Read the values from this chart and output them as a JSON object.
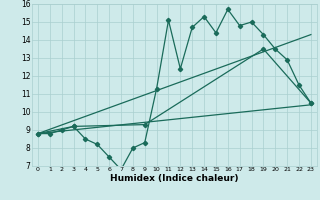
{
  "xlabel": "Humidex (Indice chaleur)",
  "bg_color": "#ceeaea",
  "grid_color": "#aacfcf",
  "line_color": "#1a6b5a",
  "xlim": [
    -0.5,
    23.5
  ],
  "ylim": [
    7,
    16
  ],
  "xticks": [
    0,
    1,
    2,
    3,
    4,
    5,
    6,
    7,
    8,
    9,
    10,
    11,
    12,
    13,
    14,
    15,
    16,
    17,
    18,
    19,
    20,
    21,
    22,
    23
  ],
  "yticks": [
    7,
    8,
    9,
    10,
    11,
    12,
    13,
    14,
    15,
    16
  ],
  "series1_x": [
    0,
    1,
    2,
    3,
    4,
    5,
    6,
    7,
    8,
    9,
    10,
    11,
    12,
    13,
    14,
    15,
    16,
    17,
    18,
    19,
    20,
    21,
    22,
    23
  ],
  "series1_y": [
    8.8,
    8.8,
    9.0,
    9.2,
    8.5,
    8.2,
    7.5,
    6.8,
    8.0,
    8.3,
    11.3,
    15.1,
    12.4,
    14.7,
    15.3,
    14.4,
    15.7,
    14.8,
    15.0,
    14.3,
    13.5,
    12.9,
    11.5,
    10.5
  ],
  "series2_x": [
    0,
    3,
    9,
    19,
    23
  ],
  "series2_y": [
    8.8,
    9.2,
    9.3,
    13.5,
    10.5
  ],
  "series3_x": [
    0,
    23
  ],
  "series3_y": [
    8.8,
    10.4
  ],
  "series4_x": [
    0,
    23
  ],
  "series4_y": [
    8.8,
    14.3
  ]
}
